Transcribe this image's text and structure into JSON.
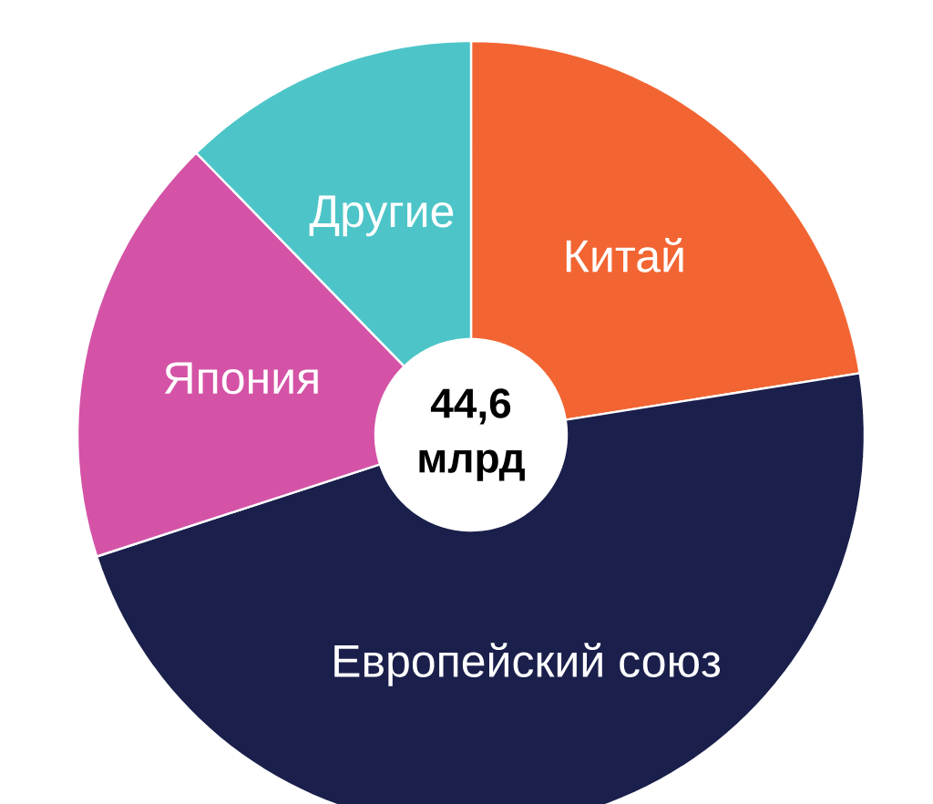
{
  "chart_data": {
    "type": "donut",
    "categories": [
      "Китай",
      "Европейский союз",
      "Япония",
      "Другие"
    ],
    "values": [
      22.5,
      47.5,
      17.7,
      12.3
    ],
    "colors": [
      "#f26532",
      "#1a1f4b",
      "#d453a6",
      "#4dc5c8"
    ],
    "annotations": [
      "44,6 млрд"
    ]
  }
}
